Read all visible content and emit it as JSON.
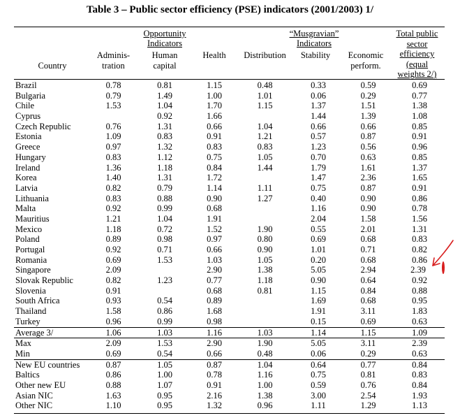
{
  "title": "Table 3 – Public sector efficiency (PSE) indicators (2001/2003) 1/",
  "groups": {
    "opportunity": [
      "Opportunity",
      "Indicators"
    ],
    "musgravian": [
      "“Musgravian”",
      "Indicators"
    ],
    "total": [
      "Total public",
      "sector",
      "efficiency",
      "(equal",
      "weights 2/)"
    ]
  },
  "columns": {
    "country": "Country",
    "administration": [
      "Adminis-",
      "tration"
    ],
    "human_capital": [
      "Human",
      "capital"
    ],
    "health": "Health",
    "distribution": "Distribution",
    "stability": "Stability",
    "economic": [
      "Economic",
      "perform."
    ]
  },
  "rows": [
    [
      "Brazil",
      "0.78",
      "0.81",
      "1.15",
      "0.48",
      "0.33",
      "0.59",
      "0.69"
    ],
    [
      "Bulgaria",
      "0.79",
      "1.49",
      "1.00",
      "1.01",
      "0.06",
      "0.29",
      "0.77"
    ],
    [
      "Chile",
      "1.53",
      "1.04",
      "1.70",
      "1.15",
      "1.37",
      "1.51",
      "1.38"
    ],
    [
      "Cyprus",
      "",
      "0.92",
      "1.66",
      "",
      "1.44",
      "1.39",
      "1.08"
    ],
    [
      "Czech Republic",
      "0.76",
      "1.31",
      "0.66",
      "1.04",
      "0.66",
      "0.66",
      "0.85"
    ],
    [
      "Estonia",
      "1.09",
      "0.83",
      "0.91",
      "1.21",
      "0.57",
      "0.87",
      "0.91"
    ],
    [
      "Greece",
      "0.97",
      "1.32",
      "0.83",
      "0.83",
      "1.23",
      "0.56",
      "0.96"
    ],
    [
      "Hungary",
      "0.83",
      "1.12",
      "0.75",
      "1.05",
      "0.70",
      "0.63",
      "0.85"
    ],
    [
      "Ireland",
      "1.36",
      "1.18",
      "0.84",
      "1.44",
      "1.79",
      "1.61",
      "1.37"
    ],
    [
      "Korea",
      "1.40",
      "1.31",
      "1.72",
      "",
      "1.47",
      "2.36",
      "1.65"
    ],
    [
      "Latvia",
      "0.82",
      "0.79",
      "1.14",
      "1.11",
      "0.75",
      "0.87",
      "0.91"
    ],
    [
      "Lithuania",
      "0.83",
      "0.88",
      "0.90",
      "1.27",
      "0.40",
      "0.90",
      "0.86"
    ],
    [
      "Malta",
      "0.92",
      "0.99",
      "0.68",
      "",
      "1.16",
      "0.90",
      "0.78"
    ],
    [
      "Mauritius",
      "1.21",
      "1.04",
      "1.91",
      "",
      "2.04",
      "1.58",
      "1.56"
    ],
    [
      "Mexico",
      "1.18",
      "0.72",
      "1.52",
      "1.90",
      "0.55",
      "2.01",
      "1.31"
    ],
    [
      "Poland",
      "0.89",
      "0.98",
      "0.97",
      "0.80",
      "0.69",
      "0.68",
      "0.83"
    ],
    [
      "Portugal",
      "0.92",
      "0.71",
      "0.66",
      "0.90",
      "1.01",
      "0.71",
      "0.82"
    ],
    [
      "Romania",
      "0.69",
      "1.53",
      "1.03",
      "1.05",
      "0.20",
      "0.68",
      "0.86"
    ],
    [
      "Singapore",
      "2.09",
      "",
      "2.90",
      "1.38",
      "5.05",
      "2.94",
      "2.39"
    ],
    [
      "Slovak Republic",
      "0.82",
      "1.23",
      "0.77",
      "1.18",
      "0.90",
      "0.64",
      "0.92"
    ],
    [
      "Slovenia",
      "0.91",
      "",
      "0.68",
      "0.81",
      "1.15",
      "0.84",
      "0.88"
    ],
    [
      "South Africa",
      "0.93",
      "0.54",
      "0.89",
      "",
      "1.69",
      "0.68",
      "0.95"
    ],
    [
      "Thailand",
      "1.58",
      "0.86",
      "1.68",
      "",
      "1.91",
      "3.11",
      "1.83"
    ],
    [
      "Turkey",
      "0.96",
      "0.99",
      "0.98",
      "",
      "0.15",
      "0.69",
      "0.63"
    ],
    [
      "Average 3/",
      "1.06",
      "1.03",
      "1.16",
      "1.03",
      "1.14",
      "1.15",
      "1.09"
    ],
    [
      "Max",
      "2.09",
      "1.53",
      "2.90",
      "1.90",
      "5.05",
      "3.11",
      "2.39"
    ],
    [
      "Min",
      "0.69",
      "0.54",
      "0.66",
      "0.48",
      "0.06",
      "0.29",
      "0.63"
    ],
    [
      "New EU countries",
      "0.87",
      "1.05",
      "0.87",
      "1.04",
      "0.64",
      "0.77",
      "0.84"
    ],
    [
      "Baltics",
      "0.86",
      "1.00",
      "0.78",
      "1.16",
      "0.75",
      "0.81",
      "0.83"
    ],
    [
      "Other new EU",
      "0.88",
      "1.07",
      "0.91",
      "1.00",
      "0.59",
      "0.76",
      "0.84"
    ],
    [
      "Asian NIC",
      "1.63",
      "0.95",
      "2.16",
      "1.38",
      "3.00",
      "2.54",
      "1.93"
    ],
    [
      "Other NIC",
      "1.10",
      "0.95",
      "1.32",
      "0.96",
      "1.11",
      "1.29",
      "1.13"
    ]
  ],
  "annotation": {
    "row": 18,
    "color": "#d81e1e",
    "icons": [
      "red-hand-drawn-arrow-icon",
      "red-hand-drawn-circle-icon"
    ]
  }
}
